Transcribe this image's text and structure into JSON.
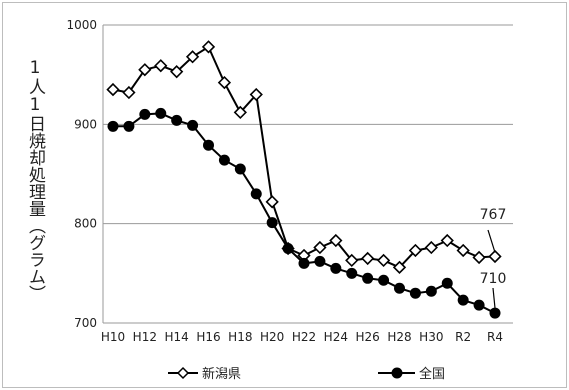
{
  "chart_data": {
    "type": "line",
    "ylabel": "1人1日焼却処理量（グラム）",
    "ylim": [
      700,
      1000
    ],
    "yticks": [
      "700",
      "800",
      "900",
      "1000"
    ],
    "categories": [
      "H10",
      "H11",
      "H12",
      "H13",
      "H14",
      "H15",
      "H16",
      "H17",
      "H18",
      "H19",
      "H20",
      "H21",
      "H22",
      "H23",
      "H24",
      "H25",
      "H26",
      "H27",
      "H28",
      "H29",
      "H30",
      "R1",
      "R2",
      "R3",
      "R4"
    ],
    "xtick_labels": [
      "H10",
      "",
      "H12",
      "",
      "H14",
      "",
      "H16",
      "",
      "H18",
      "",
      "H20",
      "",
      "H22",
      "",
      "H24",
      "",
      "H26",
      "",
      "H28",
      "",
      "H30",
      "",
      "R2",
      "",
      "R4"
    ],
    "grid": true,
    "legend_position": "bottom",
    "series": [
      {
        "name": "新潟県",
        "marker": "diamond-open",
        "color": "#000000",
        "values": [
          935,
          932,
          955,
          959,
          953,
          968,
          978,
          942,
          912,
          930,
          822,
          775,
          768,
          776,
          783,
          763,
          765,
          763,
          756,
          773,
          776,
          783,
          773,
          766,
          767
        ],
        "end_label": "767"
      },
      {
        "name": "全国",
        "marker": "circle-filled",
        "color": "#000000",
        "values": [
          898,
          898,
          910,
          911,
          904,
          899,
          879,
          864,
          855,
          830,
          801,
          775,
          760,
          762,
          755,
          750,
          745,
          743,
          735,
          730,
          732,
          740,
          723,
          718,
          710
        ],
        "end_label": "710"
      }
    ]
  }
}
